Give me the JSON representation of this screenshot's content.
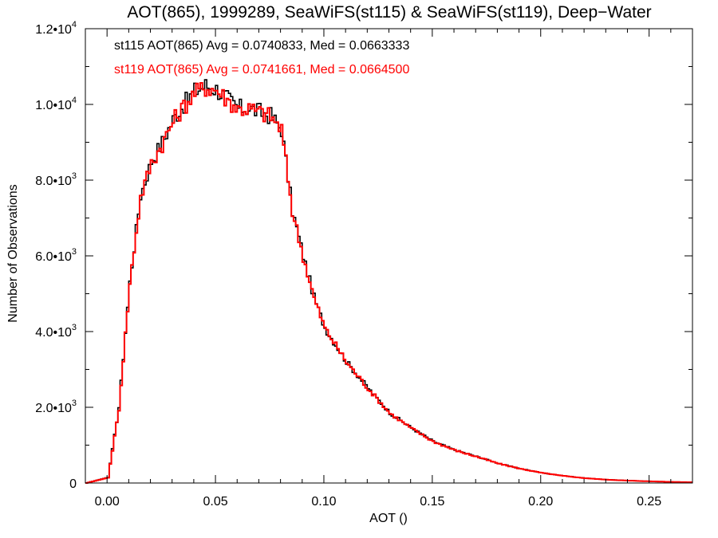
{
  "chart_data": {
    "type": "histogram-step",
    "title": "AOT(865), 1999289, SeaWiFS(st115) & SeaWiFS(st119), Deep−Water",
    "xlabel": "AOT ()",
    "ylabel": "Number of Observations",
    "xlim": [
      -0.01,
      0.27
    ],
    "ylim": [
      0,
      12000
    ],
    "x_ticks": [
      0.0,
      0.05,
      0.1,
      0.15,
      0.2,
      0.25
    ],
    "x_tick_labels": [
      "0.00",
      "0.05",
      "0.10",
      "0.15",
      "0.20",
      "0.25"
    ],
    "y_ticks": [
      0,
      2000,
      4000,
      6000,
      8000,
      10000,
      12000
    ],
    "y_tick_labels": [
      {
        "base": "0",
        "exp": ""
      },
      {
        "base": "2.0•10",
        "exp": "3"
      },
      {
        "base": "4.0•10",
        "exp": "3"
      },
      {
        "base": "6.0•10",
        "exp": "3"
      },
      {
        "base": "8.0•10",
        "exp": "3"
      },
      {
        "base": "1.0•10",
        "exp": "4"
      },
      {
        "base": "1.2•10",
        "exp": "4"
      }
    ],
    "annotations": [
      {
        "text": "st115 AOT(865) Avg = 0.0740833, Med = 0.0663333",
        "color": "#000000"
      },
      {
        "text": "st119 AOT(865) Avg = 0.0741661, Med = 0.0664500",
        "color": "#ff0000"
      }
    ],
    "series": [
      {
        "name": "st115",
        "color": "#000000",
        "bin_width": 0.001,
        "x": [
          -0.01,
          0.0,
          0.005,
          0.01,
          0.015,
          0.02,
          0.025,
          0.03,
          0.035,
          0.04,
          0.045,
          0.05,
          0.055,
          0.06,
          0.065,
          0.07,
          0.075,
          0.08,
          0.085,
          0.09,
          0.095,
          0.1,
          0.11,
          0.12,
          0.13,
          0.14,
          0.15,
          0.16,
          0.17,
          0.18,
          0.19,
          0.2,
          0.21,
          0.22,
          0.23,
          0.24,
          0.25,
          0.26,
          0.27
        ],
        "y": [
          0,
          150,
          2000,
          5300,
          7600,
          8500,
          9000,
          9600,
          10000,
          10350,
          10500,
          10400,
          10150,
          9900,
          9900,
          9800,
          9700,
          9350,
          7200,
          6000,
          4900,
          4100,
          3200,
          2500,
          1850,
          1450,
          1100,
          870,
          700,
          520,
          380,
          270,
          190,
          130,
          90,
          65,
          45,
          30,
          20
        ]
      },
      {
        "name": "st119",
        "color": "#ff0000",
        "bin_width": 0.001,
        "x": [
          -0.01,
          0.0,
          0.005,
          0.01,
          0.015,
          0.02,
          0.025,
          0.03,
          0.035,
          0.04,
          0.045,
          0.05,
          0.055,
          0.06,
          0.065,
          0.07,
          0.075,
          0.08,
          0.085,
          0.09,
          0.095,
          0.1,
          0.11,
          0.12,
          0.13,
          0.14,
          0.15,
          0.16,
          0.17,
          0.18,
          0.19,
          0.2,
          0.21,
          0.22,
          0.23,
          0.24,
          0.25,
          0.26,
          0.27
        ],
        "y": [
          0,
          140,
          1950,
          5250,
          7550,
          8450,
          8950,
          9550,
          9950,
          10300,
          10450,
          10380,
          10120,
          9880,
          9880,
          9790,
          9680,
          9330,
          7180,
          5980,
          4880,
          4090,
          3190,
          2490,
          1840,
          1440,
          1095,
          865,
          695,
          515,
          378,
          268,
          188,
          128,
          88,
          63,
          44,
          29,
          19
        ]
      }
    ]
  }
}
